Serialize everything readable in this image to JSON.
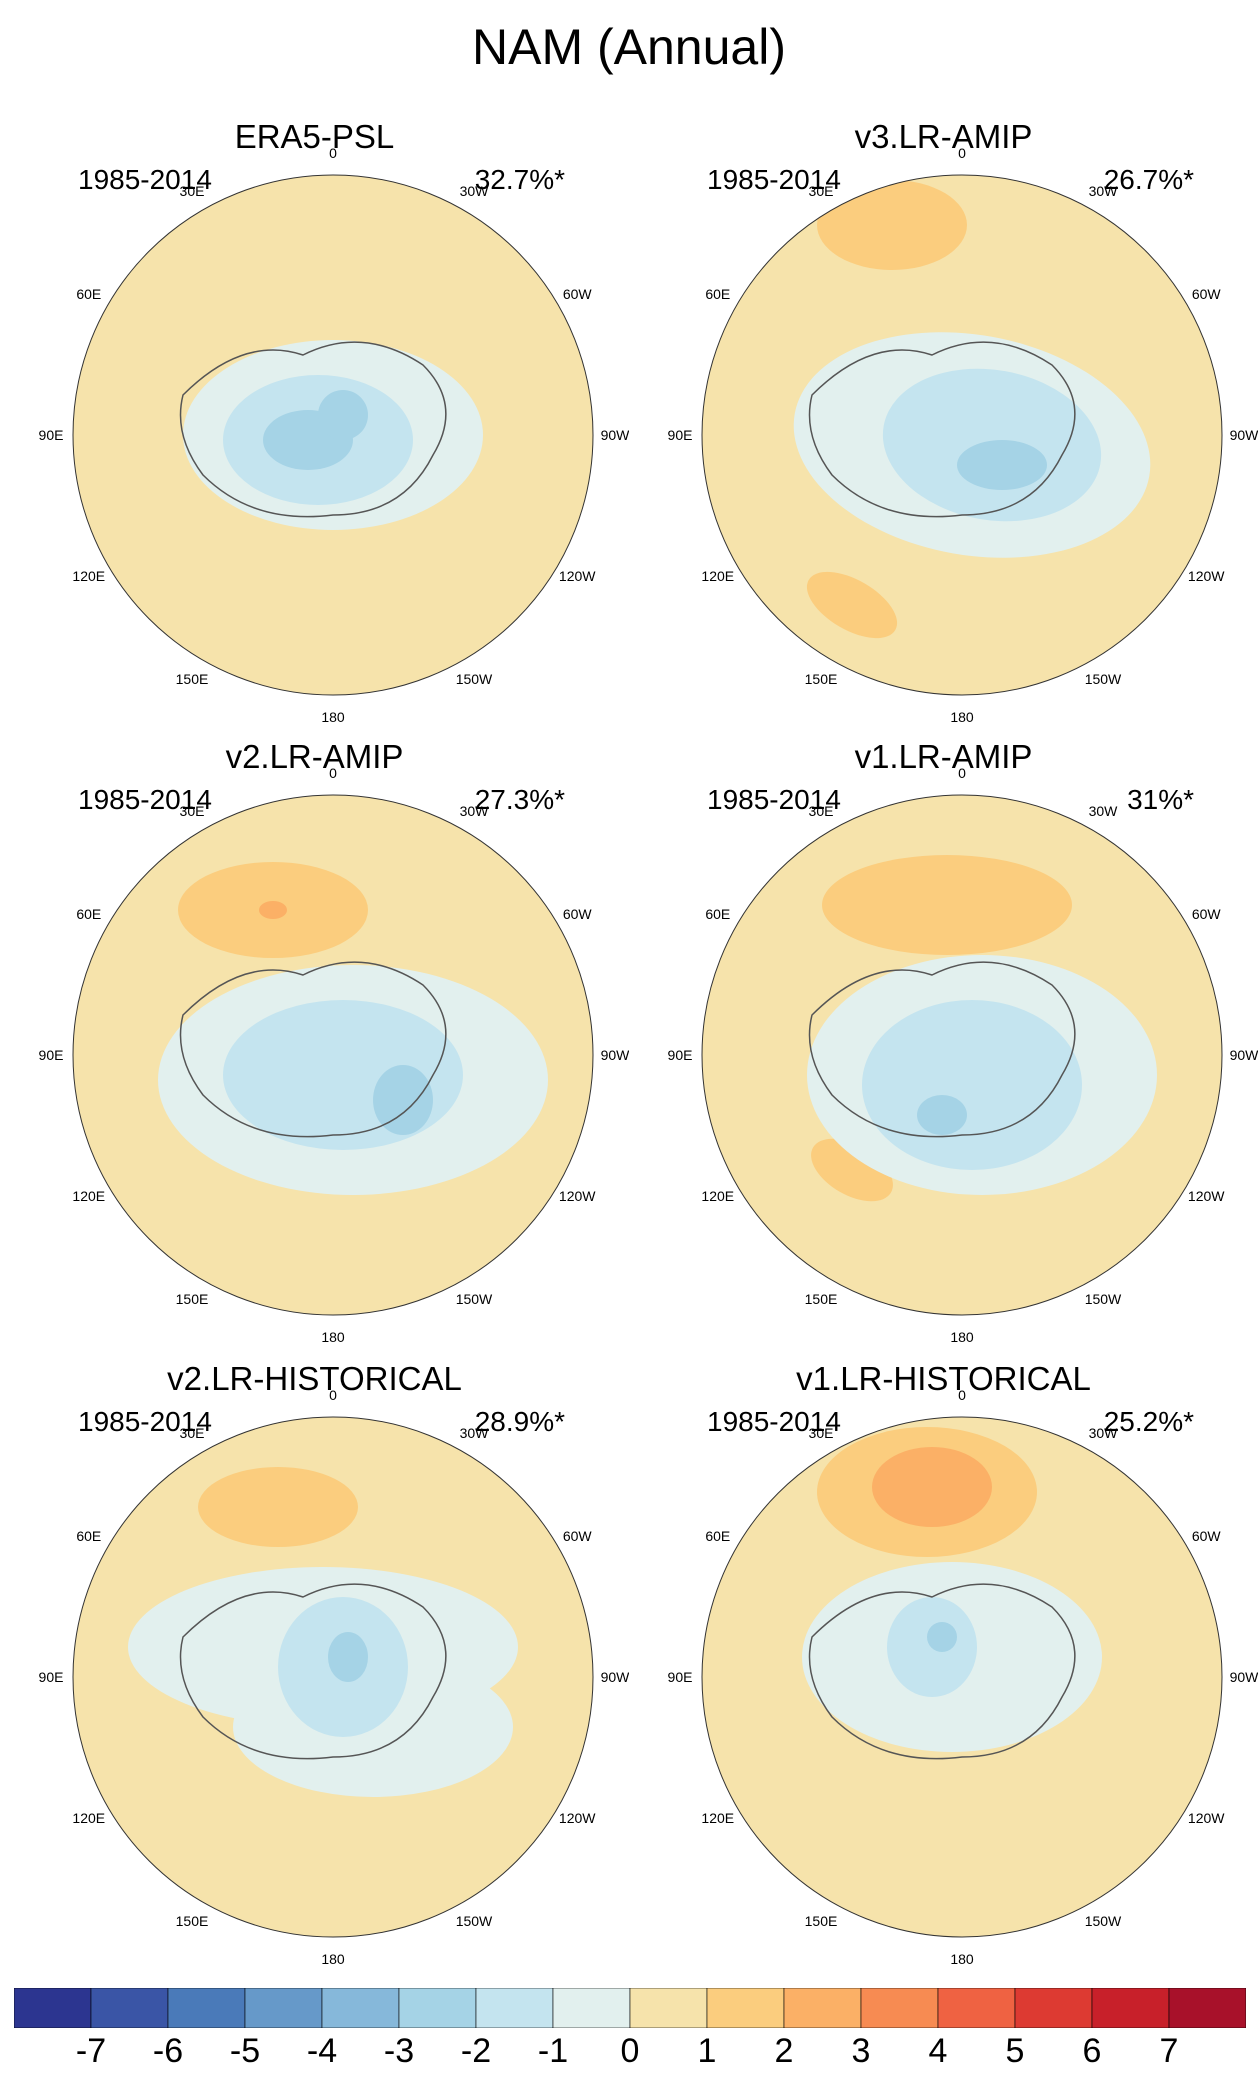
{
  "title": "NAM (Annual)",
  "panels": [
    {
      "name": "ERA5-PSL",
      "period": "1985-2014",
      "percent": "32.7%*",
      "pattern": "era5"
    },
    {
      "name": "v3.LR-AMIP",
      "period": "1985-2014",
      "percent": "26.7%*",
      "pattern": "v3amip"
    },
    {
      "name": "v2.LR-AMIP",
      "period": "1985-2014",
      "percent": "27.3%*",
      "pattern": "v2amip"
    },
    {
      "name": "v1.LR-AMIP",
      "period": "1985-2014",
      "percent": "31%*",
      "pattern": "v1amip"
    },
    {
      "name": "v2.LR-HISTORICAL",
      "period": "1985-2014",
      "percent": "28.9%*",
      "pattern": "v2hist"
    },
    {
      "name": "v1.LR-HISTORICAL",
      "period": "1985-2014",
      "percent": "25.2%*",
      "pattern": "v1hist"
    }
  ],
  "longitude_labels": [
    "180",
    "150E",
    "120E",
    "90E",
    "60E",
    "30E",
    "0",
    "30W",
    "60W",
    "90W",
    "120W",
    "150W"
  ],
  "colorbar": {
    "ticks": [
      "-7",
      "-6",
      "-5",
      "-4",
      "-3",
      "-2",
      "-1",
      "0",
      "1",
      "2",
      "3",
      "4",
      "5",
      "6",
      "7"
    ],
    "colors": [
      "#2c3590",
      "#3a55a6",
      "#4a7ab9",
      "#6699c9",
      "#86b8da",
      "#a5d3e6",
      "#c4e4ef",
      "#e2f0ee",
      "#f6e3ab",
      "#fbcd7e",
      "#fbb066",
      "#f78b52",
      "#ef6242",
      "#dd3a32",
      "#c8202a",
      "#a8112a"
    ]
  }
}
